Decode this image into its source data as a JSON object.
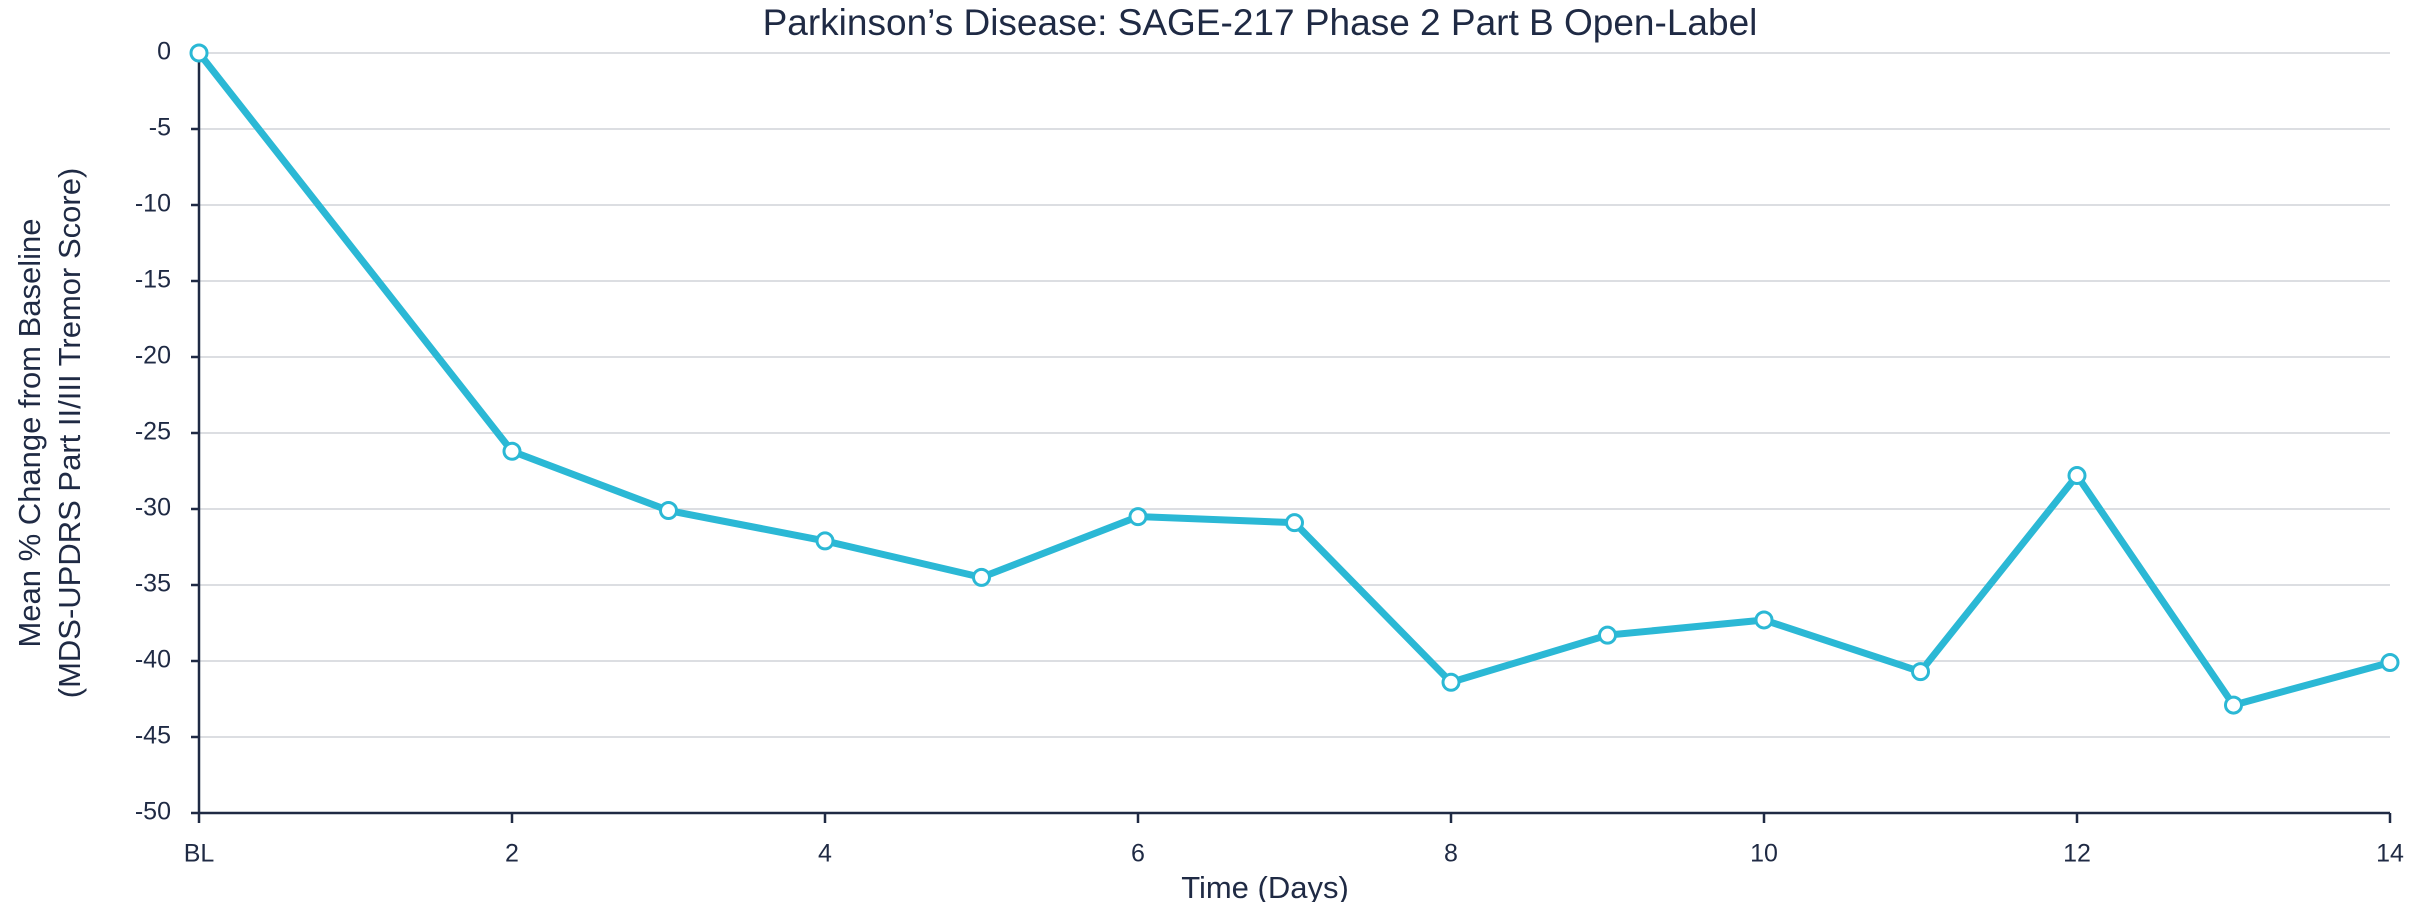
{
  "chart_data": {
    "type": "line",
    "title": "Parkinson’s Disease: SAGE-217 Phase 2 Part B Open-Label",
    "x_label": "Time (Days)",
    "y_label": [
      "Mean % Change from Baseline",
      "(MDS-UPDRS Part II/III Tremor Score)"
    ],
    "x": [
      0,
      2,
      3,
      4,
      5,
      6,
      7,
      8,
      9,
      10,
      11,
      12,
      13,
      14
    ],
    "series": [
      {
        "name": "Mean % change",
        "color": "#2bb8d5",
        "values": [
          0,
          -26.2,
          -30.1,
          -32.1,
          -34.5,
          -30.5,
          -30.9,
          -41.4,
          -38.3,
          -37.3,
          -40.7,
          -27.8,
          -42.9,
          -40.1
        ]
      }
    ],
    "xlim": [
      0,
      14
    ],
    "xticks": [
      {
        "value": 0,
        "label": "BL"
      },
      2,
      4,
      6,
      8,
      10,
      12,
      14
    ],
    "ylim": [
      -50,
      0
    ],
    "yticks": [
      0,
      -5,
      -10,
      -15,
      -20,
      -25,
      -30,
      -35,
      -40,
      -45,
      -50
    ],
    "grid": true
  }
}
